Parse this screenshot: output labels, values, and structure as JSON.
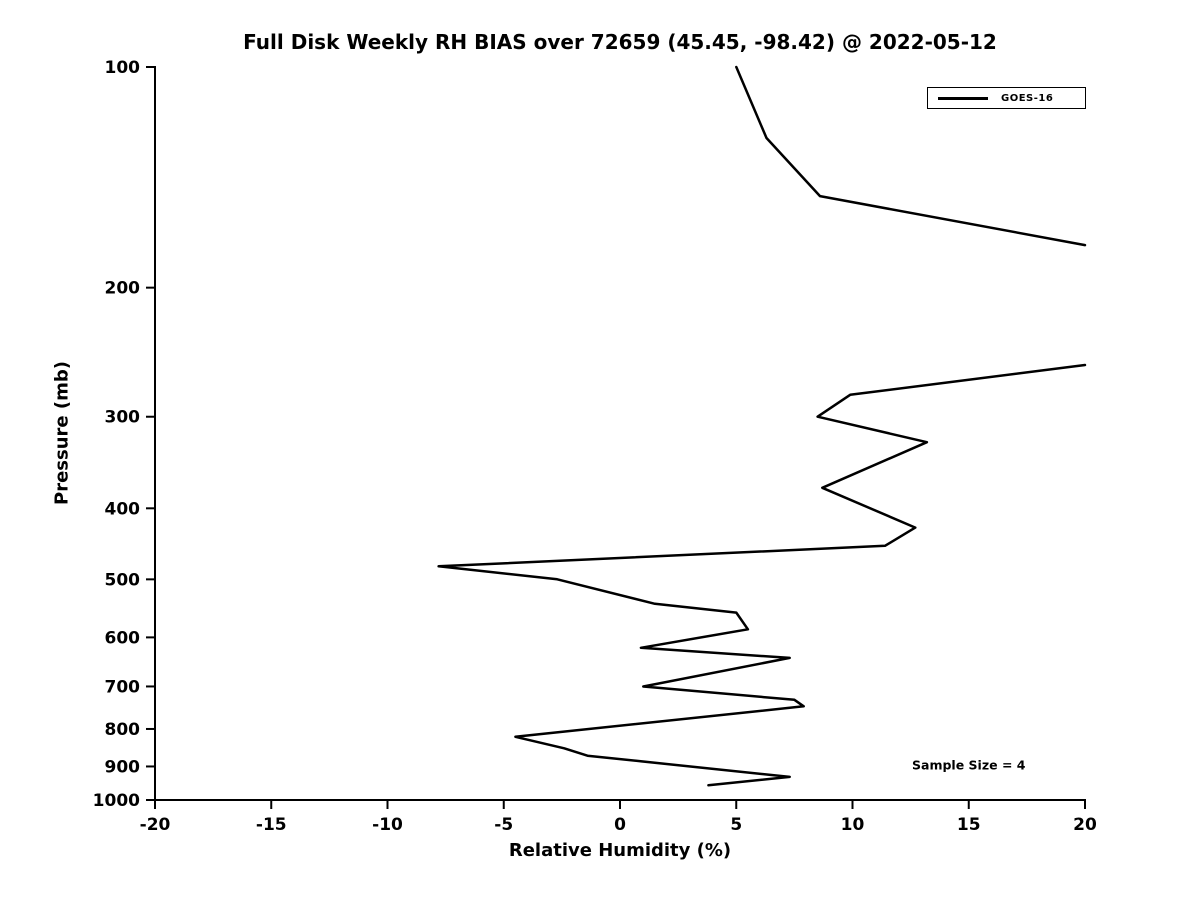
{
  "chart_data": {
    "type": "line",
    "title": "Full Disk Weekly RH BIAS over 72659 (45.45, -98.42) @ 2022-05-12",
    "xlabel": "Relative Humidity (%)",
    "ylabel": "Pressure (mb)",
    "xlim": [
      -20,
      20
    ],
    "xticks": [
      -20,
      -15,
      -10,
      -5,
      0,
      5,
      10,
      15,
      20
    ],
    "ylim": [
      100,
      1000
    ],
    "yscale": "log-inverted",
    "yticks": [
      100,
      200,
      300,
      400,
      500,
      600,
      700,
      800,
      900,
      1000
    ],
    "grid": "off",
    "colors": {
      "background": "#ffffff",
      "axis": "#000000",
      "line": "#000000",
      "text": "#000000"
    },
    "legend": {
      "position": "top-right",
      "entries": [
        {
          "label": "GOES-16",
          "color": "#000000"
        }
      ]
    },
    "annotation": {
      "text": "Sample Size = 4",
      "x": 15,
      "y": 895
    },
    "series": [
      {
        "name": "GOES-16",
        "color": "#000000",
        "line_width": 2.5,
        "segments": [
          {
            "points": [
              {
                "rh": 5.0,
                "p": 100
              },
              {
                "rh": 6.3,
                "p": 125
              },
              {
                "rh": 8.6,
                "p": 150
              },
              {
                "rh": 20.0,
                "p": 175
              }
            ]
          },
          {
            "points": [
              {
                "rh": 20.0,
                "p": 255
              },
              {
                "rh": 9.9,
                "p": 280
              },
              {
                "rh": 8.5,
                "p": 300
              },
              {
                "rh": 13.2,
                "p": 325
              },
              {
                "rh": 8.7,
                "p": 375
              },
              {
                "rh": 12.7,
                "p": 425
              },
              {
                "rh": 11.4,
                "p": 450
              },
              {
                "rh": -7.8,
                "p": 480
              },
              {
                "rh": -2.7,
                "p": 500
              },
              {
                "rh": 1.5,
                "p": 540
              },
              {
                "rh": 5.0,
                "p": 555
              },
              {
                "rh": 5.5,
                "p": 585
              },
              {
                "rh": 0.9,
                "p": 620
              },
              {
                "rh": 7.3,
                "p": 640
              },
              {
                "rh": 1.0,
                "p": 700
              },
              {
                "rh": 7.5,
                "p": 730
              },
              {
                "rh": 7.9,
                "p": 745
              },
              {
                "rh": -4.5,
                "p": 820
              },
              {
                "rh": -2.4,
                "p": 850
              },
              {
                "rh": -1.4,
                "p": 870
              },
              {
                "rh": 7.3,
                "p": 930
              },
              {
                "rh": 3.8,
                "p": 955
              }
            ]
          }
        ]
      }
    ]
  }
}
